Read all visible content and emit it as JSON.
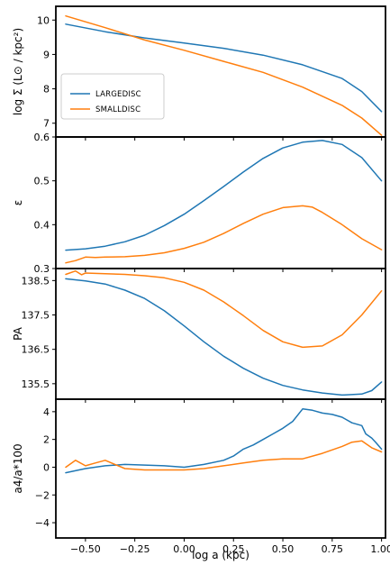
{
  "chart_data": {
    "type": "line",
    "xlabel": "log a (kpc)",
    "xlim": [
      -0.65,
      1.02
    ],
    "x_ticks": [
      "−0.50",
      "−0.25",
      "0.00",
      "0.25",
      "0.50",
      "0.75",
      "1.00"
    ],
    "x_tick_values": [
      -0.5,
      -0.25,
      0.0,
      0.25,
      0.5,
      0.75,
      1.0
    ],
    "legend": {
      "placement": "center-left of top panel",
      "entries": [
        "LARGEDISC",
        "SMALLDISC"
      ]
    },
    "colors": {
      "LARGEDISC": "#1f77b4",
      "SMALLDISC": "#ff7f0e"
    },
    "panels": [
      {
        "ylabel": "log Σ (L⊙ / kpc²)",
        "ylim": [
          6.6,
          10.4
        ],
        "y_ticks": [
          "7",
          "8",
          "9",
          "10"
        ],
        "y_tick_values": [
          7,
          8,
          9,
          10
        ],
        "series": [
          {
            "name": "LARGEDISC",
            "x": [
              -0.6,
              -0.4,
              -0.2,
              0.0,
              0.2,
              0.4,
              0.6,
              0.8,
              0.9,
              1.0
            ],
            "y": [
              9.88,
              9.66,
              9.48,
              9.33,
              9.18,
              8.98,
              8.7,
              8.3,
              7.92,
              7.34
            ]
          },
          {
            "name": "SMALLDISC",
            "x": [
              -0.6,
              -0.4,
              -0.2,
              0.0,
              0.2,
              0.4,
              0.6,
              0.8,
              0.9,
              1.0
            ],
            "y": [
              10.12,
              9.78,
              9.42,
              9.12,
              8.8,
              8.48,
              8.05,
              7.52,
              7.15,
              6.65
            ]
          }
        ]
      },
      {
        "ylabel": "ε",
        "ylim": [
          0.3,
          0.6
        ],
        "y_ticks": [
          "0.3",
          "0.4",
          "0.5",
          "0.6"
        ],
        "y_tick_values": [
          0.3,
          0.4,
          0.5,
          0.6
        ],
        "series": [
          {
            "name": "LARGEDISC",
            "x": [
              -0.6,
              -0.5,
              -0.4,
              -0.3,
              -0.2,
              -0.1,
              0.0,
              0.1,
              0.2,
              0.3,
              0.4,
              0.5,
              0.6,
              0.7,
              0.8,
              0.9,
              1.0
            ],
            "y": [
              0.342,
              0.345,
              0.351,
              0.361,
              0.376,
              0.398,
              0.424,
              0.455,
              0.487,
              0.52,
              0.551,
              0.575,
              0.588,
              0.592,
              0.583,
              0.553,
              0.5
            ]
          },
          {
            "name": "SMALLDISC",
            "x": [
              -0.6,
              -0.55,
              -0.5,
              -0.45,
              -0.4,
              -0.3,
              -0.2,
              -0.1,
              0.0,
              0.1,
              0.2,
              0.3,
              0.4,
              0.5,
              0.6,
              0.65,
              0.7,
              0.8,
              0.9,
              1.0
            ],
            "y": [
              0.313,
              0.318,
              0.326,
              0.325,
              0.326,
              0.327,
              0.33,
              0.336,
              0.346,
              0.36,
              0.38,
              0.403,
              0.424,
              0.439,
              0.443,
              0.44,
              0.428,
              0.4,
              0.368,
              0.343
            ]
          }
        ]
      },
      {
        "ylabel": "PA",
        "ylim": [
          135.05,
          138.85
        ],
        "y_ticks": [
          "135.5",
          "136.5",
          "137.5",
          "138.5"
        ],
        "y_tick_values": [
          135.5,
          136.5,
          137.5,
          138.5
        ],
        "series": [
          {
            "name": "LARGEDISC",
            "x": [
              -0.6,
              -0.5,
              -0.4,
              -0.3,
              -0.2,
              -0.1,
              0.0,
              0.1,
              0.2,
              0.3,
              0.4,
              0.5,
              0.6,
              0.7,
              0.8,
              0.9,
              0.95,
              1.0
            ],
            "y": [
              138.55,
              138.49,
              138.4,
              138.22,
              137.98,
              137.62,
              137.18,
              136.72,
              136.3,
              135.95,
              135.66,
              135.45,
              135.32,
              135.23,
              135.17,
              135.2,
              135.3,
              135.55
            ]
          },
          {
            "name": "SMALLDISC",
            "x": [
              -0.6,
              -0.55,
              -0.52,
              -0.5,
              -0.4,
              -0.3,
              -0.2,
              -0.1,
              0.0,
              0.1,
              0.2,
              0.3,
              0.4,
              0.5,
              0.6,
              0.7,
              0.8,
              0.9,
              1.0
            ],
            "y": [
              138.68,
              138.78,
              138.67,
              138.72,
              138.7,
              138.68,
              138.64,
              138.58,
              138.45,
              138.22,
              137.88,
              137.48,
              137.05,
              136.72,
              136.56,
              136.6,
              136.92,
              137.5,
              138.2
            ]
          }
        ]
      },
      {
        "ylabel": "a4/a*100",
        "ylim": [
          -5.1,
          4.9
        ],
        "y_ticks": [
          "−4",
          "−2",
          "0",
          "2",
          "4"
        ],
        "y_tick_values": [
          -4,
          -2,
          0,
          2,
          4
        ],
        "series": [
          {
            "name": "LARGEDISC",
            "x": [
              -0.6,
              -0.5,
              -0.4,
              -0.3,
              -0.2,
              -0.1,
              0.0,
              0.1,
              0.2,
              0.25,
              0.3,
              0.35,
              0.4,
              0.45,
              0.5,
              0.55,
              0.6,
              0.65,
              0.7,
              0.75,
              0.8,
              0.85,
              0.9,
              0.92,
              0.95,
              0.97,
              1.0
            ],
            "y": [
              -0.4,
              -0.1,
              0.1,
              0.2,
              0.15,
              0.1,
              0.0,
              0.2,
              0.5,
              0.8,
              1.3,
              1.6,
              2.0,
              2.4,
              2.8,
              3.3,
              4.2,
              4.1,
              3.9,
              3.8,
              3.6,
              3.2,
              3.0,
              2.4,
              2.1,
              1.8,
              1.3
            ]
          },
          {
            "name": "SMALLDISC",
            "x": [
              -0.6,
              -0.55,
              -0.5,
              -0.45,
              -0.4,
              -0.35,
              -0.3,
              -0.2,
              -0.1,
              0.0,
              0.1,
              0.2,
              0.3,
              0.4,
              0.5,
              0.6,
              0.7,
              0.8,
              0.85,
              0.9,
              0.95,
              1.0
            ],
            "y": [
              0.0,
              0.5,
              0.1,
              0.3,
              0.5,
              0.2,
              -0.1,
              -0.2,
              -0.2,
              -0.2,
              -0.1,
              0.1,
              0.3,
              0.5,
              0.6,
              0.6,
              1.0,
              1.5,
              1.8,
              1.9,
              1.4,
              1.1
            ]
          }
        ]
      }
    ]
  }
}
